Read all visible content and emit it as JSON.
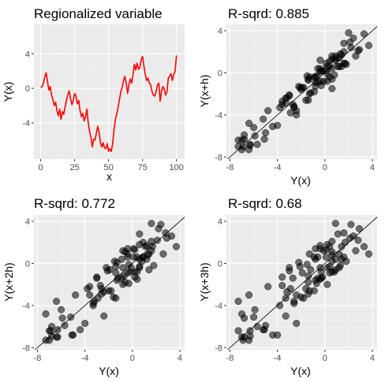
{
  "chart_data": [
    {
      "type": "line",
      "title": "Regionalized variable",
      "xlabel": "x",
      "ylabel": "Y(x)",
      "xlim": [
        -5,
        106
      ],
      "ylim": [
        -8.2,
        7.4
      ],
      "xticks": [
        0,
        25,
        50,
        75,
        100
      ],
      "yticks": [
        -4,
        0,
        4
      ],
      "color": "#ff0000",
      "series": [
        {
          "x": [
            0,
            1,
            2,
            3,
            4,
            5,
            6,
            7,
            8,
            9,
            10,
            11,
            12,
            13,
            14,
            15,
            16,
            17,
            18,
            19,
            20,
            21,
            22,
            23,
            24,
            25,
            26,
            27,
            28,
            29,
            30,
            31,
            32,
            33,
            34,
            35,
            36,
            37,
            38,
            39,
            40,
            41,
            42,
            43,
            44,
            45,
            46,
            47,
            48,
            49,
            50,
            51,
            52,
            53,
            54,
            55,
            56,
            57,
            58,
            59,
            60,
            61,
            62,
            63,
            64,
            65,
            66,
            67,
            68,
            69,
            70,
            71,
            72,
            73,
            74,
            75,
            76,
            77,
            78,
            79,
            80,
            81,
            82,
            83,
            84,
            85,
            86,
            87,
            88,
            89,
            90,
            91,
            92,
            93,
            94,
            95,
            96,
            97,
            98,
            99,
            100
          ],
          "y": [
            0.1,
            0.2,
            0.6,
            1.3,
            1.8,
            0.8,
            -0.2,
            0.2,
            -0.8,
            -1.3,
            -2.0,
            -1.6,
            -2.6,
            -3.2,
            -2.4,
            -3.6,
            -2.7,
            -3.0,
            -2.1,
            -1.4,
            -0.7,
            -0.3,
            -1.2,
            -1.9,
            -1.4,
            -0.6,
            -0.9,
            -1.8,
            -1.4,
            -2.6,
            -3.3,
            -2.9,
            -3.8,
            -3.3,
            -2.4,
            -4.0,
            -5.0,
            -5.7,
            -6.8,
            -5.9,
            -6.0,
            -5.2,
            -4.4,
            -5.1,
            -6.3,
            -6.8,
            -6.3,
            -6.9,
            -7.0,
            -6.4,
            -7.3,
            -7.0,
            -7.3,
            -6.4,
            -4.8,
            -3.6,
            -3.0,
            -2.2,
            -1.3,
            -0.4,
            0.1,
            0.9,
            1.4,
            0.6,
            -0.6,
            0.4,
            1.1,
            0.6,
            1.6,
            2.8,
            2.1,
            2.9,
            2.2,
            2.4,
            3.3,
            3.7,
            2.6,
            1.6,
            0.9,
            1.2,
            0.6,
            0.4,
            -0.4,
            -0.8,
            -0.9,
            -0.4,
            0.4,
            0.6,
            -1.5,
            -0.3,
            0.2,
            -0.1,
            -0.8,
            -0.4,
            1.2,
            1.4,
            1.7,
            0.9,
            1.6,
            2.0,
            3.8
          ]
        }
      ]
    },
    {
      "type": "scatter",
      "title": "R-sqrd: 0.885",
      "xlabel": "Y(x)",
      "ylabel": "Y(x+h)",
      "xlim": [
        -8.3,
        4.4
      ],
      "ylim": [
        -8.2,
        4.6
      ],
      "xticks": [
        -8,
        -4,
        0,
        4
      ],
      "yticks": [
        -8,
        -4,
        0,
        4
      ],
      "lag": 1,
      "fit_line": {
        "slope": 1,
        "intercept": 0
      },
      "point_color": "#000000",
      "point_opacity": 0.55
    },
    {
      "type": "scatter",
      "title": "R-sqrd: 0.772",
      "xlabel": "Y(x)",
      "ylabel": "Y(x+2h)",
      "xlim": [
        -8.3,
        4.4
      ],
      "ylim": [
        -8.2,
        4.6
      ],
      "xticks": [
        -8,
        -4,
        0,
        4
      ],
      "yticks": [
        -8,
        -4,
        0,
        4
      ],
      "lag": 2,
      "fit_line": {
        "slope": 1,
        "intercept": 0
      },
      "point_color": "#000000",
      "point_opacity": 0.55
    },
    {
      "type": "scatter",
      "title": "R-sqrd: 0.68",
      "xlabel": "Y(x)",
      "ylabel": "Y(x+3h)",
      "xlim": [
        -8.3,
        4.4
      ],
      "ylim": [
        -8.2,
        4.6
      ],
      "xticks": [
        -8,
        -4,
        0,
        4
      ],
      "yticks": [
        -8,
        -4,
        0,
        4
      ],
      "lag": 3,
      "fit_line": {
        "slope": 1,
        "intercept": 0
      },
      "point_color": "#000000",
      "point_opacity": 0.55
    }
  ],
  "style": {
    "panel_background": "#ebebeb",
    "grid_major": "#ffffff",
    "grid_minor": "#f5f5f5",
    "tick_text": "#4d4d4d"
  }
}
